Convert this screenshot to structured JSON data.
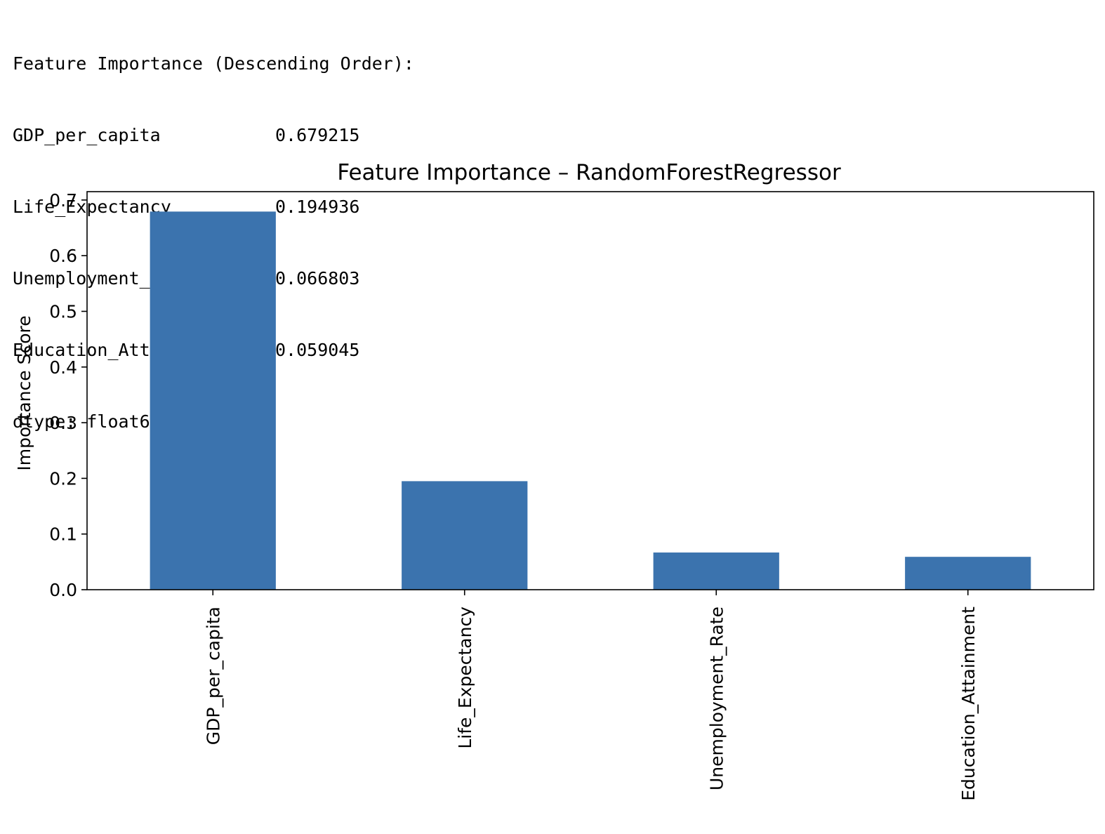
{
  "console_output": {
    "header": "Feature Importance (Descending Order):",
    "rows": [
      {
        "feature": "GDP_per_capita",
        "value": "0.679215"
      },
      {
        "feature": "Life_Expectancy",
        "value": "0.194936"
      },
      {
        "feature": "Unemployment_Rate",
        "value": "0.066803"
      },
      {
        "feature": "Education_Attainment",
        "value": "0.059045"
      }
    ],
    "dtype_line": "dtype: float64"
  },
  "chart_data": {
    "type": "bar",
    "title": "Feature Importance – RandomForestRegressor",
    "xlabel": "",
    "ylabel": "Importance Score",
    "categories": [
      "GDP_per_capita",
      "Life_Expectancy",
      "Unemployment_Rate",
      "Education_Attainment"
    ],
    "values": [
      0.679215,
      0.194936,
      0.066803,
      0.059045
    ],
    "ylim": [
      0,
      0.715
    ],
    "yticks": [
      "0.0",
      "0.1",
      "0.2",
      "0.3",
      "0.4",
      "0.5",
      "0.6",
      "0.7"
    ],
    "bar_color": "#3b73ae",
    "grid": false,
    "legend": "none"
  }
}
